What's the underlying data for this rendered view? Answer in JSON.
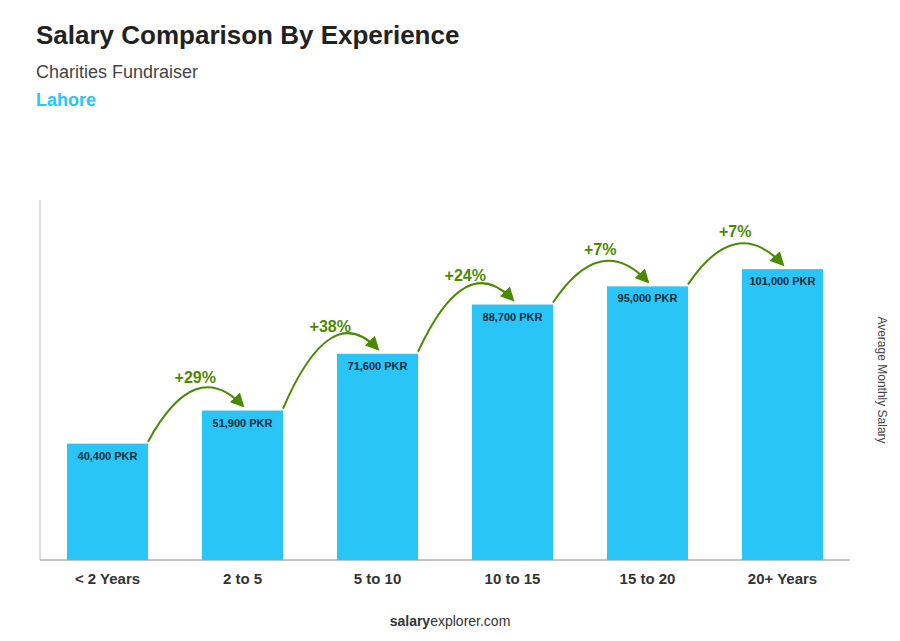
{
  "chart_data": {
    "type": "bar",
    "title": "Salary Comparison By Experience",
    "subtitle": "Charities Fundraiser",
    "city": "Lahore",
    "ylabel": "Average Monthly Salary",
    "categories": [
      "< 2 Years",
      "2 to 5",
      "5 to 10",
      "10 to 15",
      "15 to 20",
      "20+ Years"
    ],
    "values": [
      40400,
      51900,
      71600,
      88700,
      95000,
      101000
    ],
    "value_labels": [
      "40,400 PKR",
      "51,900 PKR",
      "71,600 PKR",
      "88,700 PKR",
      "95,000 PKR",
      "101,000 PKR"
    ],
    "data_labels": true,
    "annotations": [
      "+29%",
      "+38%",
      "+24%",
      "+7%",
      "+7%"
    ],
    "color": "#29c5f6",
    "ylim": [
      0,
      125000
    ],
    "yticks": [],
    "tick_labels": "x",
    "grid": false,
    "footer_bold": "salary",
    "footer_normal": "explorer.com"
  }
}
